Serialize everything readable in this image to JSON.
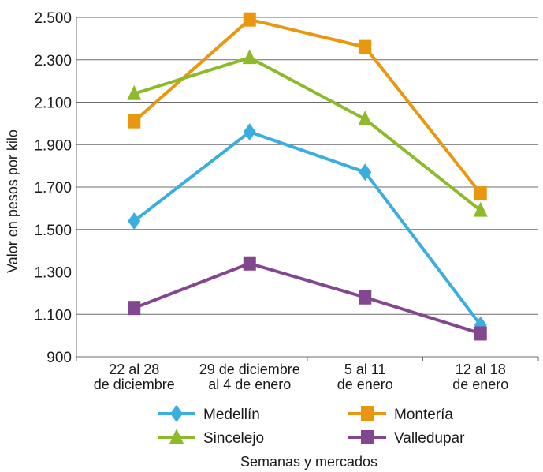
{
  "chart_data": {
    "type": "line",
    "xlabel": "Semanas y mercados",
    "ylabel": "Valor en pesos por kilo",
    "ylim": [
      900,
      2500
    ],
    "yticks": [
      900,
      1100,
      1300,
      1500,
      1700,
      1900,
      2100,
      2300,
      2500
    ],
    "ytick_labels": [
      "900",
      "1.100",
      "1.300",
      "1.500",
      "1.700",
      "1.900",
      "2.100",
      "2.300",
      "2.500"
    ],
    "categories": [
      [
        "22 al 28",
        "de diciembre"
      ],
      [
        "29 de diciembre",
        "al 4 de enero"
      ],
      [
        "5 al 11",
        "de enero"
      ],
      [
        "12 al 18",
        "de enero"
      ]
    ],
    "grid": true,
    "legend_position": "bottom",
    "series": [
      {
        "name": "Medellín",
        "color": "#3BAEE0",
        "marker": "diamond",
        "values": [
          1540,
          1960,
          1770,
          1050
        ]
      },
      {
        "name": "Montería",
        "color": "#E8970F",
        "marker": "square",
        "values": [
          2010,
          2490,
          2360,
          1670
        ]
      },
      {
        "name": "Sincelejo",
        "color": "#8DBA2A",
        "marker": "triangle",
        "values": [
          2140,
          2310,
          2020,
          1590
        ]
      },
      {
        "name": "Valledupar",
        "color": "#82478E",
        "marker": "square",
        "values": [
          1130,
          1340,
          1180,
          1010
        ]
      }
    ]
  }
}
